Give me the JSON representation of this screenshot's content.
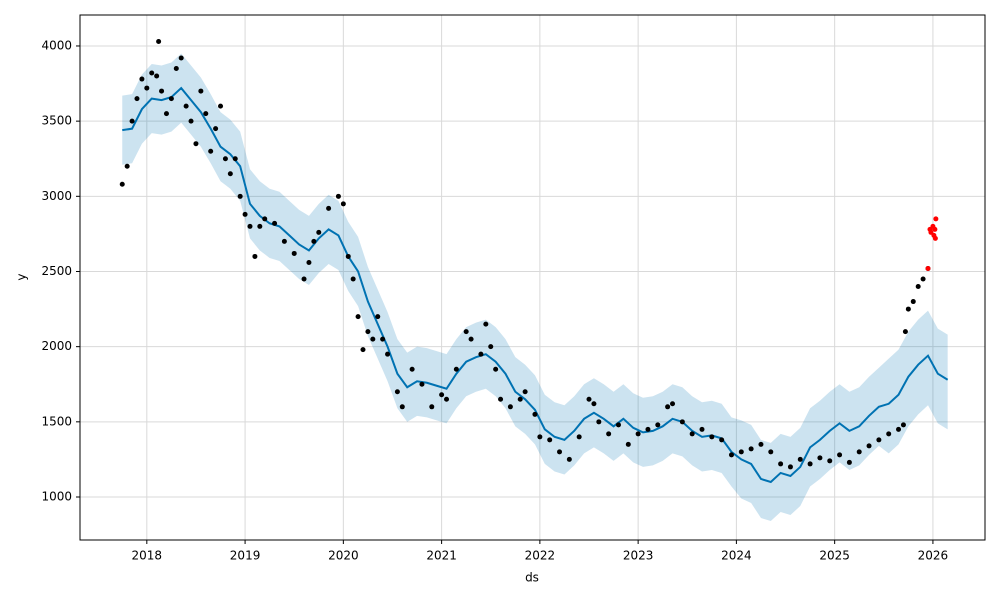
{
  "chart_data": {
    "type": "forecast",
    "xlabel": "ds",
    "ylabel": "y",
    "grid": true,
    "xlim": [
      2017.32,
      2026.53
    ],
    "ylim": [
      714,
      4206
    ],
    "xticks": [
      2018,
      2019,
      2020,
      2021,
      2022,
      2023,
      2024,
      2025,
      2026
    ],
    "yticks": [
      1000,
      1500,
      2000,
      2500,
      3000,
      3500,
      4000
    ],
    "series": [
      {
        "type": "band",
        "color": "#0072B2",
        "x": [
          2017.75,
          2017.85,
          2017.95,
          2018.05,
          2018.15,
          2018.25,
          2018.35,
          2018.45,
          2018.55,
          2018.65,
          2018.75,
          2018.85,
          2018.95,
          2019.05,
          2019.15,
          2019.25,
          2019.35,
          2019.45,
          2019.55,
          2019.65,
          2019.75,
          2019.85,
          2019.95,
          2020.05,
          2020.15,
          2020.25,
          2020.35,
          2020.45,
          2020.55,
          2020.65,
          2020.75,
          2020.85,
          2020.95,
          2021.05,
          2021.15,
          2021.25,
          2021.35,
          2021.45,
          2021.55,
          2021.65,
          2021.75,
          2021.85,
          2021.95,
          2022.05,
          2022.15,
          2022.25,
          2022.35,
          2022.45,
          2022.55,
          2022.65,
          2022.75,
          2022.85,
          2022.95,
          2023.05,
          2023.15,
          2023.25,
          2023.35,
          2023.45,
          2023.55,
          2023.65,
          2023.75,
          2023.85,
          2023.95,
          2024.05,
          2024.15,
          2024.25,
          2024.35,
          2024.45,
          2024.55,
          2024.65,
          2024.75,
          2024.85,
          2024.95,
          2025.05,
          2025.15,
          2025.25,
          2025.35,
          2025.45,
          2025.55,
          2025.65,
          2025.75,
          2025.85,
          2025.95,
          2026.05,
          2026.15
        ],
        "upper": [
          3670,
          3680,
          3810,
          3880,
          3870,
          3890,
          3950,
          3870,
          3790,
          3680,
          3560,
          3510,
          3430,
          3180,
          3100,
          3050,
          3030,
          2970,
          2910,
          2870,
          2950,
          3010,
          2970,
          2830,
          2730,
          2530,
          2380,
          2230,
          2050,
          1960,
          2000,
          1990,
          1970,
          1950,
          2050,
          2130,
          2160,
          2180,
          2130,
          2050,
          1930,
          1880,
          1810,
          1680,
          1630,
          1610,
          1670,
          1750,
          1790,
          1750,
          1700,
          1750,
          1690,
          1660,
          1670,
          1700,
          1750,
          1730,
          1670,
          1630,
          1640,
          1620,
          1530,
          1510,
          1480,
          1380,
          1360,
          1420,
          1400,
          1460,
          1590,
          1640,
          1700,
          1750,
          1700,
          1730,
          1800,
          1860,
          1920,
          1980,
          2100,
          2180,
          2240,
          2120,
          2080
        ],
        "lower": [
          3210,
          3220,
          3350,
          3420,
          3410,
          3430,
          3490,
          3410,
          3330,
          3220,
          3100,
          3050,
          2970,
          2720,
          2640,
          2590,
          2570,
          2510,
          2450,
          2410,
          2490,
          2550,
          2510,
          2370,
          2270,
          2070,
          1920,
          1770,
          1590,
          1500,
          1540,
          1530,
          1510,
          1490,
          1590,
          1670,
          1700,
          1720,
          1670,
          1590,
          1470,
          1420,
          1350,
          1220,
          1170,
          1150,
          1210,
          1290,
          1330,
          1290,
          1240,
          1290,
          1230,
          1200,
          1210,
          1240,
          1290,
          1270,
          1210,
          1170,
          1180,
          1160,
          1070,
          990,
          960,
          860,
          840,
          900,
          880,
          940,
          1070,
          1120,
          1180,
          1230,
          1180,
          1210,
          1280,
          1340,
          1290,
          1350,
          1470,
          1550,
          1610,
          1490,
          1450
        ]
      },
      {
        "type": "line",
        "color": "#0072B2",
        "x": [
          2017.75,
          2017.85,
          2017.95,
          2018.05,
          2018.15,
          2018.25,
          2018.35,
          2018.45,
          2018.55,
          2018.65,
          2018.75,
          2018.85,
          2018.95,
          2019.05,
          2019.15,
          2019.25,
          2019.35,
          2019.45,
          2019.55,
          2019.65,
          2019.75,
          2019.85,
          2019.95,
          2020.05,
          2020.15,
          2020.25,
          2020.35,
          2020.45,
          2020.55,
          2020.65,
          2020.75,
          2020.85,
          2020.95,
          2021.05,
          2021.15,
          2021.25,
          2021.35,
          2021.45,
          2021.55,
          2021.65,
          2021.75,
          2021.85,
          2021.95,
          2022.05,
          2022.15,
          2022.25,
          2022.35,
          2022.45,
          2022.55,
          2022.65,
          2022.75,
          2022.85,
          2022.95,
          2023.05,
          2023.15,
          2023.25,
          2023.35,
          2023.45,
          2023.55,
          2023.65,
          2023.75,
          2023.85,
          2023.95,
          2024.05,
          2024.15,
          2024.25,
          2024.35,
          2024.45,
          2024.55,
          2024.65,
          2024.75,
          2024.85,
          2024.95,
          2025.05,
          2025.15,
          2025.25,
          2025.35,
          2025.45,
          2025.55,
          2025.65,
          2025.75,
          2025.85,
          2025.95,
          2026.05,
          2026.15
        ],
        "values": [
          3440,
          3450,
          3580,
          3650,
          3640,
          3660,
          3720,
          3640,
          3560,
          3450,
          3330,
          3280,
          3200,
          2950,
          2870,
          2820,
          2800,
          2740,
          2680,
          2640,
          2720,
          2780,
          2740,
          2600,
          2500,
          2300,
          2150,
          2000,
          1820,
          1730,
          1770,
          1760,
          1740,
          1720,
          1820,
          1900,
          1930,
          1950,
          1900,
          1820,
          1700,
          1650,
          1580,
          1450,
          1400,
          1380,
          1440,
          1520,
          1560,
          1520,
          1470,
          1520,
          1460,
          1430,
          1440,
          1470,
          1520,
          1500,
          1440,
          1400,
          1410,
          1390,
          1300,
          1250,
          1220,
          1120,
          1100,
          1160,
          1140,
          1200,
          1330,
          1380,
          1440,
          1490,
          1440,
          1470,
          1540,
          1600,
          1620,
          1680,
          1800,
          1880,
          1940,
          1820,
          1780
        ]
      },
      {
        "type": "scatter",
        "color": "#000000",
        "x": [
          2017.75,
          2017.8,
          2017.85,
          2017.9,
          2017.95,
          2018.0,
          2018.05,
          2018.1,
          2018.12,
          2018.15,
          2018.2,
          2018.25,
          2018.3,
          2018.35,
          2018.4,
          2018.45,
          2018.5,
          2018.55,
          2018.6,
          2018.65,
          2018.7,
          2018.75,
          2018.8,
          2018.85,
          2018.9,
          2018.95,
          2019.0,
          2019.05,
          2019.1,
          2019.15,
          2019.2,
          2019.3,
          2019.4,
          2019.5,
          2019.6,
          2019.65,
          2019.7,
          2019.75,
          2019.85,
          2019.95,
          2020.0,
          2020.05,
          2020.1,
          2020.15,
          2020.2,
          2020.25,
          2020.3,
          2020.35,
          2020.4,
          2020.45,
          2020.55,
          2020.6,
          2020.7,
          2020.8,
          2020.9,
          2021.0,
          2021.05,
          2021.15,
          2021.25,
          2021.3,
          2021.4,
          2021.45,
          2021.5,
          2021.55,
          2021.6,
          2021.7,
          2021.8,
          2021.85,
          2021.95,
          2022.0,
          2022.1,
          2022.2,
          2022.3,
          2022.4,
          2022.5,
          2022.55,
          2022.6,
          2022.7,
          2022.8,
          2022.9,
          2023.0,
          2023.1,
          2023.2,
          2023.3,
          2023.35,
          2023.45,
          2023.55,
          2023.65,
          2023.75,
          2023.85,
          2023.95,
          2024.05,
          2024.15,
          2024.25,
          2024.35,
          2024.45,
          2024.55,
          2024.65,
          2024.75,
          2024.85,
          2024.95,
          2025.05,
          2025.15,
          2025.25,
          2025.35,
          2025.45,
          2025.55,
          2025.65,
          2025.7,
          2025.72,
          2025.75,
          2025.8,
          2025.85,
          2025.9,
          2025.95
        ],
        "values": [
          3080,
          3200,
          3500,
          3650,
          3780,
          3720,
          3820,
          3800,
          4030,
          3700,
          3550,
          3650,
          3850,
          3920,
          3600,
          3500,
          3350,
          3700,
          3550,
          3300,
          3450,
          3600,
          3250,
          3150,
          3250,
          3000,
          2880,
          2800,
          2600,
          2800,
          2850,
          2820,
          2700,
          2620,
          2450,
          2560,
          2700,
          2760,
          2920,
          3000,
          2950,
          2600,
          2450,
          2200,
          1980,
          2100,
          2050,
          2200,
          2050,
          1950,
          1700,
          1600,
          1850,
          1750,
          1600,
          1680,
          1650,
          1850,
          2100,
          2050,
          1950,
          2150,
          2000,
          1850,
          1650,
          1600,
          1650,
          1700,
          1550,
          1400,
          1380,
          1300,
          1250,
          1400,
          1650,
          1620,
          1500,
          1420,
          1480,
          1350,
          1420,
          1450,
          1480,
          1600,
          1620,
          1500,
          1420,
          1450,
          1400,
          1380,
          1280,
          1300,
          1320,
          1350,
          1300,
          1220,
          1200,
          1250,
          1220,
          1260,
          1240,
          1280,
          1230,
          1300,
          1340,
          1380,
          1420,
          1450,
          1480,
          2100,
          2250,
          2300,
          2400,
          2450,
          2520
        ]
      },
      {
        "type": "scatter",
        "color": "#ff0000",
        "x": [
          2025.95,
          2025.97,
          2025.98,
          2026.0,
          2026.01,
          2026.02,
          2026.03,
          2026.025
        ],
        "values": [
          2520,
          2780,
          2760,
          2800,
          2740,
          2780,
          2850,
          2720
        ]
      }
    ]
  }
}
